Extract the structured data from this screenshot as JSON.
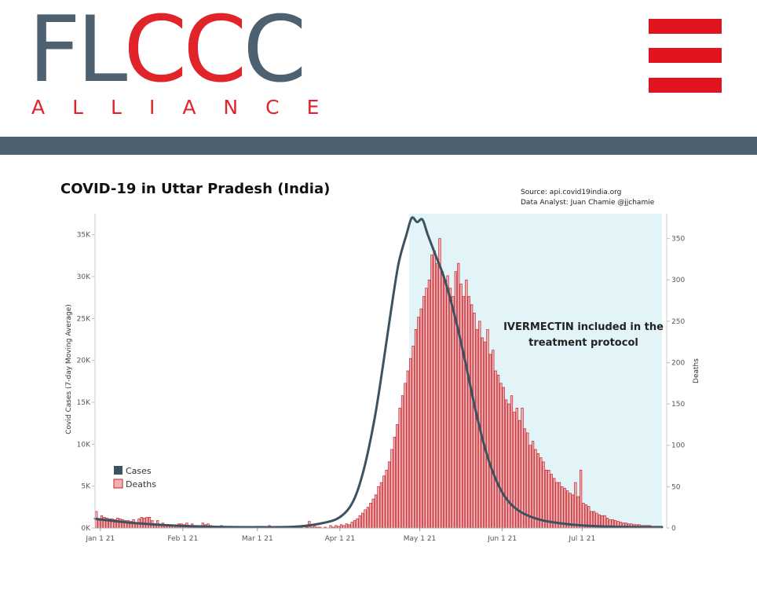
{
  "header": {
    "logo_text_1": "FL",
    "logo_text_2": "CC",
    "logo_text_3": "C",
    "logo_subtext": "ALLIANCE",
    "colors": {
      "brand_gray": "#4e6170",
      "brand_red": "#e0242a",
      "flag_red": "#e0141f"
    }
  },
  "chart_data": {
    "type": "bar",
    "title": "COVID-19 in Uttar Pradesh (India)",
    "source": "Source: api.covid19india.org",
    "analyst": "Data Analyst:  Juan Chamie @jjchamie",
    "ylabel_left": "Covid Cases (7-day Moving Average)",
    "ylabel_right": "Deaths",
    "ylim_left": [
      0,
      37500
    ],
    "ylim_right": [
      0,
      380
    ],
    "left_ticks": [
      "0K",
      "5K",
      "10K",
      "15K",
      "20K",
      "25K",
      "30K",
      "35K"
    ],
    "right_ticks": [
      "0",
      "50",
      "100",
      "150",
      "200",
      "250",
      "300",
      "350"
    ],
    "x_ticks": [
      "Jan 1 21",
      "Feb 1 21",
      "Mar 1 21",
      "Apr 1 21",
      "May 1 21",
      "Jun 1 21",
      "Jul 1 21"
    ],
    "x_range": [
      "2020-12-30",
      "2021-07-31"
    ],
    "annotation": {
      "line1": "IVERMECTIN included in the",
      "line2": "treatment protocol",
      "shaded_from": "2021-04-27",
      "shade_color": "#e2f4f8"
    },
    "legend": {
      "cases_label": "Cases",
      "deaths_label": "Deaths",
      "position": "bottom-left",
      "cases_color": "#3d5260",
      "deaths_fill": "#f3b3b6",
      "deaths_edge": "#c0242a"
    },
    "series": [
      {
        "name": "Cases",
        "kind": "line",
        "points": [
          [
            "2020-12-30",
            1100
          ],
          [
            "2021-01-10",
            700
          ],
          [
            "2021-01-20",
            450
          ],
          [
            "2021-02-01",
            250
          ],
          [
            "2021-02-15",
            130
          ],
          [
            "2021-03-01",
            100
          ],
          [
            "2021-03-15",
            150
          ],
          [
            "2021-03-25",
            550
          ],
          [
            "2021-04-01",
            1300
          ],
          [
            "2021-04-06",
            3200
          ],
          [
            "2021-04-10",
            7000
          ],
          [
            "2021-04-14",
            13000
          ],
          [
            "2021-04-17",
            19000
          ],
          [
            "2021-04-20",
            25500
          ],
          [
            "2021-04-23",
            31500
          ],
          [
            "2021-04-26",
            35000
          ],
          [
            "2021-04-28",
            37000
          ],
          [
            "2021-04-30",
            36500
          ],
          [
            "2021-05-02",
            36800
          ],
          [
            "2021-05-04",
            35000
          ],
          [
            "2021-05-07",
            32500
          ],
          [
            "2021-05-10",
            30000
          ],
          [
            "2021-05-14",
            25500
          ],
          [
            "2021-05-18",
            20000
          ],
          [
            "2021-05-22",
            14000
          ],
          [
            "2021-05-26",
            9000
          ],
          [
            "2021-05-30",
            5500
          ],
          [
            "2021-06-03",
            3300
          ],
          [
            "2021-06-08",
            1900
          ],
          [
            "2021-06-15",
            1000
          ],
          [
            "2021-06-22",
            600
          ],
          [
            "2021-07-01",
            300
          ],
          [
            "2021-07-10",
            180
          ],
          [
            "2021-07-20",
            120
          ],
          [
            "2021-07-31",
            100
          ]
        ]
      },
      {
        "name": "Deaths",
        "kind": "bar",
        "start": "2020-12-30",
        "values": [
          20,
          9,
          15,
          13,
          12,
          11,
          11,
          10,
          12,
          11,
          10,
          9,
          9,
          8,
          10,
          6,
          11,
          13,
          12,
          13,
          13,
          9,
          5,
          9,
          4,
          6,
          4,
          4,
          4,
          3,
          3,
          5,
          5,
          4,
          6,
          3,
          5,
          3,
          2,
          2,
          6,
          4,
          5,
          3,
          2,
          2,
          1,
          3,
          2,
          1,
          2,
          1,
          1,
          1,
          0,
          1,
          1,
          0,
          1,
          0,
          1,
          0,
          1,
          1,
          2,
          3,
          0,
          1,
          2,
          1,
          1,
          0,
          2,
          1,
          2,
          0,
          1,
          1,
          0,
          1,
          8,
          1,
          2,
          1,
          1,
          0,
          1,
          0,
          3,
          1,
          3,
          2,
          4,
          3,
          5,
          4,
          7,
          9,
          11,
          15,
          18,
          22,
          25,
          30,
          35,
          40,
          50,
          55,
          63,
          70,
          80,
          95,
          110,
          125,
          145,
          160,
          175,
          190,
          205,
          220,
          240,
          255,
          265,
          280,
          290,
          300,
          330,
          335,
          320,
          350,
          310,
          300,
          305,
          290,
          280,
          310,
          320,
          295,
          280,
          300,
          280,
          270,
          260,
          240,
          250,
          230,
          225,
          240,
          210,
          215,
          190,
          185,
          175,
          170,
          155,
          150,
          160,
          140,
          145,
          130,
          145,
          120,
          115,
          100,
          105,
          95,
          90,
          85,
          80,
          70,
          70,
          65,
          60,
          55,
          55,
          50,
          48,
          45,
          42,
          40,
          55,
          38,
          70,
          30,
          28,
          26,
          20,
          20,
          18,
          16,
          15,
          15,
          12,
          10,
          10,
          9,
          8,
          7,
          6,
          6,
          5,
          5,
          4,
          4,
          4,
          3,
          3,
          3,
          3
        ]
      }
    ]
  }
}
